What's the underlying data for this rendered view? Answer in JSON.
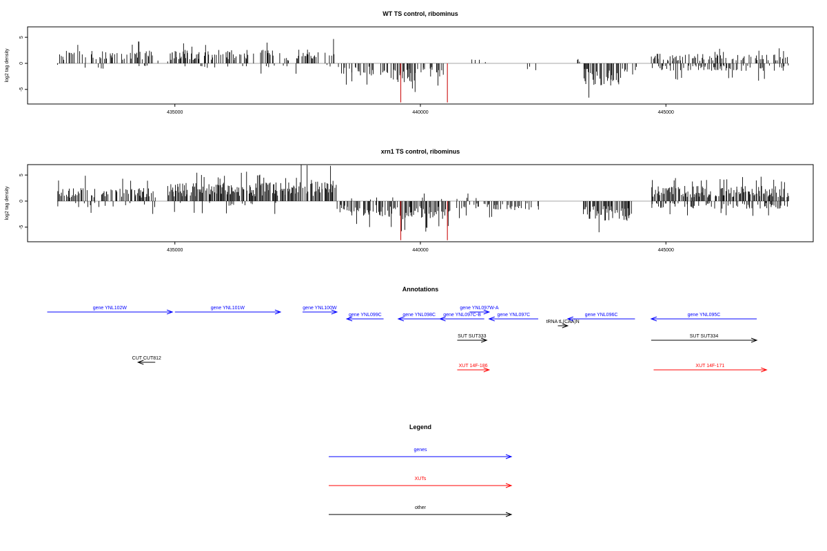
{
  "chart_data": [
    {
      "type": "bar",
      "title": "WT TS control, ribominus",
      "xlabel": "",
      "ylabel": "log2 tag density",
      "x_ticks": [
        435000,
        440000,
        445000
      ],
      "x_tick_labels": [
        "435000",
        "440000",
        "445000"
      ],
      "y_ticks": [
        -5,
        0,
        5
      ],
      "y_tick_labels": [
        "-5",
        "0",
        "5"
      ],
      "xlim": [
        432000,
        448000
      ],
      "ylim": [
        -7.8,
        7
      ],
      "data_range": [
        432600,
        447500
      ],
      "positive_regions": [
        {
          "from": 432600,
          "to": 434600,
          "mean": 1.7,
          "max": 4.6,
          "density": 0.45
        },
        {
          "from": 434600,
          "to": 434850,
          "mean": 0.4,
          "max": 1.0,
          "density": 0.1
        },
        {
          "from": 434850,
          "to": 437000,
          "mean": 1.8,
          "max": 4.2,
          "density": 0.55
        },
        {
          "from": 437000,
          "to": 437500,
          "mean": 0.8,
          "max": 2.0,
          "density": 0.2
        },
        {
          "from": 437500,
          "to": 438250,
          "mean": 2.0,
          "max": 5.5,
          "density": 0.55
        },
        {
          "from": 441000,
          "to": 441400,
          "mean": 0.6,
          "max": 1.5,
          "density": 0.08
        },
        {
          "from": 443000,
          "to": 443300,
          "mean": 0.6,
          "max": 1.5,
          "density": 0.06
        },
        {
          "from": 444700,
          "to": 447500,
          "mean": 1.3,
          "max": 2.9,
          "density": 0.45
        }
      ],
      "negative_regions": [
        {
          "from": 432600,
          "to": 434600,
          "mean": -0.7,
          "max": -2.5,
          "density": 0.05
        },
        {
          "from": 434850,
          "to": 438250,
          "mean": -0.6,
          "max": -2.5,
          "density": 0.05
        },
        {
          "from": 438300,
          "to": 439300,
          "mean": -1.6,
          "max": -4.5,
          "density": 0.35
        },
        {
          "from": 439300,
          "to": 439900,
          "mean": -2.6,
          "max": -5.5,
          "density": 0.55
        },
        {
          "from": 439900,
          "to": 440500,
          "mean": -1.8,
          "max": -5.5,
          "density": 0.35
        },
        {
          "from": 440700,
          "to": 441000,
          "mean": -1.0,
          "max": -2.0,
          "density": 0.08
        },
        {
          "from": 441800,
          "to": 442400,
          "mean": -1.0,
          "max": -2.0,
          "density": 0.06
        },
        {
          "from": 443300,
          "to": 444100,
          "mean": -3.0,
          "max": -7.3,
          "density": 0.7
        },
        {
          "from": 444100,
          "to": 444400,
          "mean": -1.5,
          "max": -3.5,
          "density": 0.4
        },
        {
          "from": 444700,
          "to": 447500,
          "mean": -1.0,
          "max": -3.5,
          "density": 0.35
        }
      ],
      "highlight_spikes": [
        {
          "x": 439600,
          "y": -7.5,
          "color": "#d02020"
        },
        {
          "x": 440550,
          "y": -7.5,
          "color": "#d02020"
        }
      ],
      "bar_color": "#000000",
      "baseline_color": "#888888"
    },
    {
      "type": "bar",
      "title": "xrn1 TS control, ribominus",
      "xlabel": "",
      "ylabel": "log2 tag density",
      "x_ticks": [
        435000,
        440000,
        445000
      ],
      "x_tick_labels": [
        "435000",
        "440000",
        "445000"
      ],
      "y_ticks": [
        -5,
        0,
        5
      ],
      "y_tick_labels": [
        "-5",
        "0",
        "5"
      ],
      "xlim": [
        432000,
        448000
      ],
      "ylim": [
        -7.8,
        7
      ],
      "data_range": [
        432600,
        447500
      ],
      "positive_regions": [
        {
          "from": 432600,
          "to": 434600,
          "mean": 1.8,
          "max": 5.0,
          "density": 0.5
        },
        {
          "from": 434850,
          "to": 437500,
          "mean": 2.5,
          "max": 5.7,
          "density": 0.85
        },
        {
          "from": 437500,
          "to": 438300,
          "mean": 2.8,
          "max": 7.2,
          "density": 0.75
        },
        {
          "from": 438300,
          "to": 441400,
          "mean": 0.5,
          "max": 1.5,
          "density": 0.06
        },
        {
          "from": 442800,
          "to": 443300,
          "mean": 0.8,
          "max": 2.0,
          "density": 0.1
        },
        {
          "from": 444700,
          "to": 447500,
          "mean": 2.0,
          "max": 4.8,
          "density": 0.85
        }
      ],
      "negative_regions": [
        {
          "from": 432600,
          "to": 434600,
          "mean": -0.8,
          "max": -3.0,
          "density": 0.08
        },
        {
          "from": 434850,
          "to": 438300,
          "mean": -0.7,
          "max": -2.5,
          "density": 0.06
        },
        {
          "from": 438300,
          "to": 439300,
          "mean": -2.0,
          "max": -5.0,
          "density": 0.6
        },
        {
          "from": 439300,
          "to": 440600,
          "mean": -2.4,
          "max": -6.0,
          "density": 0.75
        },
        {
          "from": 440700,
          "to": 442400,
          "mean": -1.2,
          "max": -3.5,
          "density": 0.45
        },
        {
          "from": 443300,
          "to": 444300,
          "mean": -2.6,
          "max": -6.5,
          "density": 0.7
        },
        {
          "from": 444700,
          "to": 447500,
          "mean": -1.0,
          "max": -3.0,
          "density": 0.4
        }
      ],
      "highlight_spikes": [
        {
          "x": 439600,
          "y": -7.5,
          "color": "#d02020"
        },
        {
          "x": 440550,
          "y": -7.5,
          "color": "#d02020"
        }
      ],
      "bar_color": "#000000",
      "baseline_color": "#888888"
    }
  ],
  "annotations": {
    "title": "Annotations",
    "xlim": [
      432000,
      448000
    ],
    "features": [
      {
        "label": "gene YNL102W",
        "from": 432400,
        "to": 434950,
        "row": 0,
        "dir": "right",
        "color": "#0000ff"
      },
      {
        "label": "gene YNL101W",
        "from": 435000,
        "to": 437150,
        "row": 0,
        "dir": "right",
        "color": "#0000ff"
      },
      {
        "label": "gene YNL100W",
        "from": 437600,
        "to": 438300,
        "row": 0,
        "dir": "right",
        "color": "#0000ff"
      },
      {
        "label": "gene YNL099C",
        "from": 438500,
        "to": 439250,
        "row": 1,
        "dir": "left",
        "color": "#0000ff"
      },
      {
        "label": "gene YNL098C",
        "from": 439550,
        "to": 440400,
        "row": 1,
        "dir": "left",
        "color": "#0000ff"
      },
      {
        "label": "gene YNL097C-B",
        "from": 440400,
        "to": 441300,
        "row": 1,
        "dir": "left",
        "color": "#0000ff"
      },
      {
        "label": "gene YNL097W-A",
        "from": 441000,
        "to": 441400,
        "row": 0,
        "dir": "right",
        "color": "#0000ff"
      },
      {
        "label": "gene YNL097C",
        "from": 441400,
        "to": 442400,
        "row": 1,
        "dir": "left",
        "color": "#0000ff"
      },
      {
        "label": "tRNA tL(CAA)N",
        "from": 442800,
        "to": 443000,
        "row": 2,
        "dir": "right",
        "color": "#000000"
      },
      {
        "label": "gene YNL096C",
        "from": 443000,
        "to": 444370,
        "row": 1,
        "dir": "left",
        "color": "#0000ff"
      },
      {
        "label": "gene YNL095C",
        "from": 444700,
        "to": 446850,
        "row": 1,
        "dir": "left",
        "color": "#0000ff"
      },
      {
        "label": "SUT SUT333",
        "from": 440750,
        "to": 441350,
        "row": 3,
        "dir": "right",
        "color": "#000000"
      },
      {
        "label": "SUT SUT334",
        "from": 444700,
        "to": 446850,
        "row": 3,
        "dir": "right",
        "color": "#000000"
      },
      {
        "label": "CUT CUT812",
        "from": 434250,
        "to": 434600,
        "row": 4,
        "dir": "left",
        "color": "#000000"
      },
      {
        "label": "XUT 14F-186",
        "from": 440750,
        "to": 441400,
        "row": 5,
        "dir": "right",
        "color": "#ff0000"
      },
      {
        "label": "XUT 14F-171",
        "from": 444750,
        "to": 447050,
        "row": 5,
        "dir": "right",
        "color": "#ff0000"
      }
    ]
  },
  "legend": {
    "title": "Legend",
    "entries": [
      {
        "label": "genes",
        "color": "#0000ff"
      },
      {
        "label": "XUTs",
        "color": "#ff0000"
      },
      {
        "label": "other",
        "color": "#000000"
      }
    ]
  }
}
